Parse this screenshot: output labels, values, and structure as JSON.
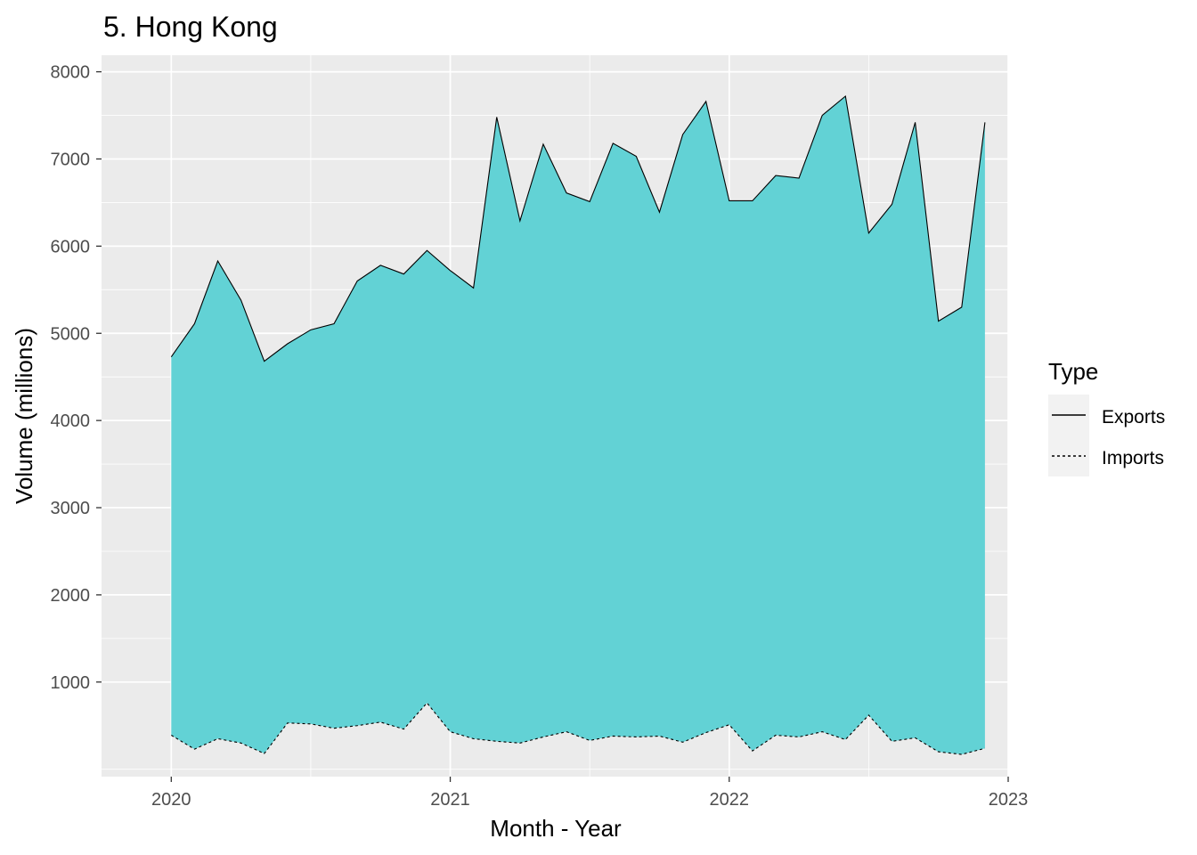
{
  "chart_data": {
    "type": "area",
    "title": "5. Hong Kong",
    "xlabel": "Month - Year",
    "ylabel": "Volume (millions)",
    "x_ticks": [
      "2020",
      "2021",
      "2022",
      "2023"
    ],
    "y_ticks": [
      1000,
      2000,
      3000,
      4000,
      5000,
      6000,
      7000,
      8000
    ],
    "xlim": [
      "2019-10",
      "2023-01"
    ],
    "ylim": [
      0,
      8000
    ],
    "grid": true,
    "panel_background": "#ebebeb",
    "fill_color": "#5dd1d4",
    "legend": {
      "title": "Type",
      "position": "right",
      "entries": [
        {
          "label": "Exports",
          "linetype": "solid"
        },
        {
          "label": "Imports",
          "linetype": "dotted"
        }
      ]
    },
    "x": [
      "2020-01",
      "2020-02",
      "2020-03",
      "2020-04",
      "2020-05",
      "2020-06",
      "2020-07",
      "2020-08",
      "2020-09",
      "2020-10",
      "2020-11",
      "2020-12",
      "2021-01",
      "2021-02",
      "2021-03",
      "2021-04",
      "2021-05",
      "2021-06",
      "2021-07",
      "2021-08",
      "2021-09",
      "2021-10",
      "2021-11",
      "2021-12",
      "2022-01",
      "2022-02",
      "2022-03",
      "2022-04",
      "2022-05",
      "2022-06",
      "2022-07",
      "2022-08",
      "2022-09",
      "2022-10",
      "2022-11",
      "2022-12"
    ],
    "series": [
      {
        "name": "Exports",
        "linetype": "solid",
        "values": [
          4730,
          5110,
          5830,
          5380,
          4680,
          4880,
          5040,
          5110,
          5600,
          5780,
          5680,
          5950,
          5720,
          5520,
          7480,
          6290,
          7170,
          6610,
          6510,
          7180,
          7030,
          6390,
          7280,
          7660,
          6520,
          6520,
          6810,
          6780,
          7500,
          7720,
          6150,
          6480,
          7420,
          5140,
          5300,
          7420
        ]
      },
      {
        "name": "Imports",
        "linetype": "dotted",
        "values": [
          390,
          230,
          350,
          300,
          180,
          530,
          520,
          470,
          500,
          540,
          460,
          760,
          430,
          350,
          320,
          300,
          370,
          430,
          330,
          380,
          370,
          380,
          310,
          420,
          510,
          210,
          390,
          370,
          430,
          340,
          620,
          320,
          360,
          200,
          170,
          240
        ]
      }
    ]
  }
}
